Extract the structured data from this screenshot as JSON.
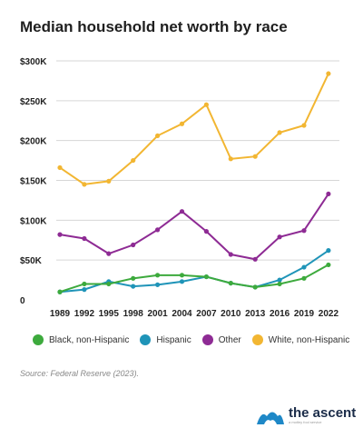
{
  "chart_data": {
    "type": "line",
    "title": "Median household net worth by race",
    "xlabel": "",
    "ylabel": "",
    "x": [
      "1989",
      "1992",
      "1995",
      "1998",
      "2001",
      "2004",
      "2007",
      "2010",
      "2013",
      "2016",
      "2019",
      "2022"
    ],
    "yticks": [
      {
        "value": 0,
        "label": "0"
      },
      {
        "value": 50000,
        "label": "$50K"
      },
      {
        "value": 100000,
        "label": "$100K"
      },
      {
        "value": 150000,
        "label": "$150K"
      },
      {
        "value": 200000,
        "label": "$200K"
      },
      {
        "value": 250000,
        "label": "$250K"
      },
      {
        "value": 300000,
        "label": "$300K"
      }
    ],
    "ylim": [
      0,
      300000
    ],
    "grid": true,
    "legend": "bottom",
    "series": [
      {
        "name": "White, non-Hispanic",
        "color": "#F2B632",
        "values": [
          166000,
          145000,
          149000,
          175000,
          206000,
          221000,
          245000,
          177000,
          180000,
          210000,
          219000,
          284000
        ]
      },
      {
        "name": "Other",
        "color": "#8E2B94",
        "values": [
          82000,
          77000,
          58000,
          69000,
          88000,
          111000,
          86000,
          57000,
          51000,
          79000,
          87000,
          133000
        ]
      },
      {
        "name": "Hispanic",
        "color": "#1F94B8",
        "values": [
          10000,
          13000,
          23000,
          17000,
          19000,
          23000,
          29000,
          21000,
          16000,
          25000,
          41000,
          62000
        ]
      },
      {
        "name": "Black, non-Hispanic",
        "color": "#3DAA3D",
        "values": [
          10000,
          20000,
          20000,
          27000,
          31000,
          31000,
          29000,
          21000,
          16000,
          20000,
          27000,
          44000
        ]
      }
    ],
    "legend_order": [
      "Black, non-Hispanic",
      "Hispanic",
      "Other",
      "White, non-Hispanic"
    ]
  },
  "footer": {
    "source": "Source: Federal Reserve (2023).",
    "brand": "the ascent",
    "brand_tagline": "a motley fool service"
  },
  "colors": {
    "logo_blue": "#1E88C7",
    "logo_dark": "#1a2b48"
  }
}
